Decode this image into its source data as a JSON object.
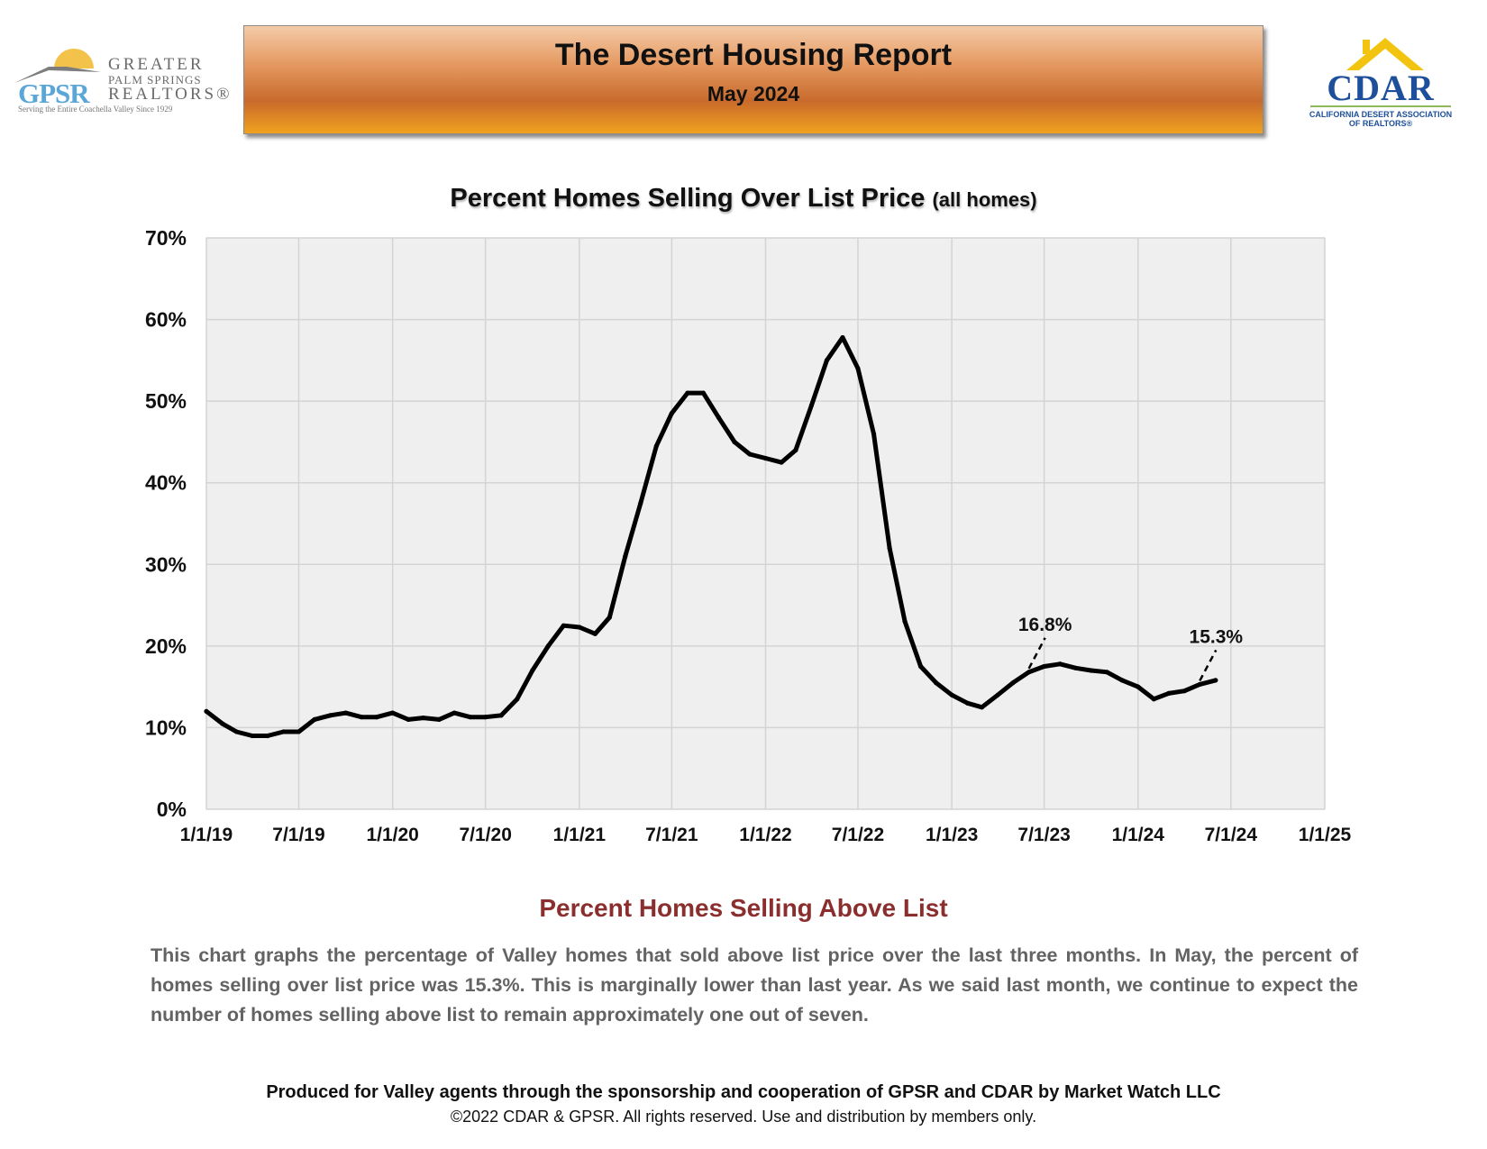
{
  "header": {
    "gpsr": {
      "letters": "GPSR",
      "name_line1": "GREATER",
      "name_line2": "PALM SPRINGS",
      "name_line3": "REALTORS®",
      "tagline": "Serving the Entire Coachella Valley Since 1929"
    },
    "banner_title": "The Desert Housing Report",
    "banner_subtitle": "May 2024",
    "cdar": {
      "word": "CDAR",
      "sub_line1": "CALIFORNIA DESERT ASSOCIATION",
      "sub_line2": "OF REALTORS®"
    }
  },
  "chart_title_main": "Percent Homes Selling Over List Price",
  "chart_title_sub": "(all homes)",
  "chart_data": {
    "type": "line",
    "title": "Percent Homes Selling Over List Price (all homes)",
    "xlabel": "",
    "ylabel": "",
    "x_ticks": [
      "1/1/19",
      "7/1/19",
      "1/1/20",
      "7/1/20",
      "1/1/21",
      "7/1/21",
      "1/1/22",
      "7/1/22",
      "1/1/23",
      "7/1/23",
      "1/1/24",
      "7/1/24",
      "1/1/25"
    ],
    "x_range": [
      "2019-01-01",
      "2025-01-01"
    ],
    "y_ticks": [
      "0%",
      "10%",
      "20%",
      "30%",
      "40%",
      "50%",
      "60%",
      "70%"
    ],
    "ylim": [
      0,
      70
    ],
    "grid": true,
    "series": [
      {
        "color": "#000000",
        "points": [
          {
            "x": "2019-01-01",
            "y": 12.0
          },
          {
            "x": "2019-02-01",
            "y": 10.5
          },
          {
            "x": "2019-03-01",
            "y": 9.5
          },
          {
            "x": "2019-04-01",
            "y": 9.0
          },
          {
            "x": "2019-05-01",
            "y": 9.0
          },
          {
            "x": "2019-06-01",
            "y": 9.5
          },
          {
            "x": "2019-07-01",
            "y": 9.5
          },
          {
            "x": "2019-08-01",
            "y": 11.0
          },
          {
            "x": "2019-09-01",
            "y": 11.5
          },
          {
            "x": "2019-10-01",
            "y": 11.8
          },
          {
            "x": "2019-11-01",
            "y": 11.3
          },
          {
            "x": "2019-12-01",
            "y": 11.3
          },
          {
            "x": "2020-01-01",
            "y": 11.8
          },
          {
            "x": "2020-02-01",
            "y": 11.0
          },
          {
            "x": "2020-03-01",
            "y": 11.2
          },
          {
            "x": "2020-04-01",
            "y": 11.0
          },
          {
            "x": "2020-05-01",
            "y": 11.8
          },
          {
            "x": "2020-06-01",
            "y": 11.3
          },
          {
            "x": "2020-07-01",
            "y": 11.3
          },
          {
            "x": "2020-08-01",
            "y": 11.5
          },
          {
            "x": "2020-09-01",
            "y": 13.5
          },
          {
            "x": "2020-10-01",
            "y": 17.0
          },
          {
            "x": "2020-11-01",
            "y": 20.0
          },
          {
            "x": "2020-12-01",
            "y": 22.5
          },
          {
            "x": "2021-01-01",
            "y": 22.3
          },
          {
            "x": "2021-02-01",
            "y": 21.5
          },
          {
            "x": "2021-03-01",
            "y": 23.5
          },
          {
            "x": "2021-04-01",
            "y": 31.0
          },
          {
            "x": "2021-05-01",
            "y": 37.5
          },
          {
            "x": "2021-06-01",
            "y": 44.5
          },
          {
            "x": "2021-07-01",
            "y": 48.5
          },
          {
            "x": "2021-08-01",
            "y": 51.0
          },
          {
            "x": "2021-09-01",
            "y": 51.0
          },
          {
            "x": "2021-10-01",
            "y": 48.0
          },
          {
            "x": "2021-11-01",
            "y": 45.0
          },
          {
            "x": "2021-12-01",
            "y": 43.5
          },
          {
            "x": "2022-01-01",
            "y": 43.0
          },
          {
            "x": "2022-02-01",
            "y": 42.5
          },
          {
            "x": "2022-03-01",
            "y": 44.0
          },
          {
            "x": "2022-04-01",
            "y": 49.5
          },
          {
            "x": "2022-05-01",
            "y": 55.0
          },
          {
            "x": "2022-06-01",
            "y": 57.8
          },
          {
            "x": "2022-07-01",
            "y": 54.0
          },
          {
            "x": "2022-08-01",
            "y": 46.0
          },
          {
            "x": "2022-09-01",
            "y": 32.0
          },
          {
            "x": "2022-10-01",
            "y": 23.0
          },
          {
            "x": "2022-11-01",
            "y": 17.5
          },
          {
            "x": "2022-12-01",
            "y": 15.5
          },
          {
            "x": "2023-01-01",
            "y": 14.0
          },
          {
            "x": "2023-02-01",
            "y": 13.0
          },
          {
            "x": "2023-03-01",
            "y": 12.5
          },
          {
            "x": "2023-04-01",
            "y": 14.0
          },
          {
            "x": "2023-05-01",
            "y": 15.5
          },
          {
            "x": "2023-06-01",
            "y": 16.8
          },
          {
            "x": "2023-07-01",
            "y": 17.5
          },
          {
            "x": "2023-08-01",
            "y": 17.8
          },
          {
            "x": "2023-09-01",
            "y": 17.3
          },
          {
            "x": "2023-10-01",
            "y": 17.0
          },
          {
            "x": "2023-11-01",
            "y": 16.8
          },
          {
            "x": "2023-12-01",
            "y": 15.8
          },
          {
            "x": "2024-01-01",
            "y": 15.0
          },
          {
            "x": "2024-02-01",
            "y": 13.5
          },
          {
            "x": "2024-03-01",
            "y": 14.2
          },
          {
            "x": "2024-04-01",
            "y": 14.5
          },
          {
            "x": "2024-05-01",
            "y": 15.3
          },
          {
            "x": "2024-06-01",
            "y": 15.8
          }
        ]
      }
    ],
    "annotations": [
      {
        "text": "16.8%",
        "x": "2023-06-01",
        "y": 16.8
      },
      {
        "text": "15.3%",
        "x": "2024-05-01",
        "y": 15.3
      }
    ]
  },
  "section_heading": "Percent Homes Selling Above List",
  "section_body": "This chart graphs the percentage of Valley homes that sold above list price over the last three months. In May, the percent of homes selling over list price was 15.3%. This is marginally lower than last year. As we said last month, we continue to expect the number of homes selling above list to remain approximately one out of seven.",
  "footer_line1": "Produced for Valley agents through the sponsorship and cooperation of GPSR and CDAR by Market Watch LLC",
  "footer_line2": "©2022 CDAR & GPSR.  All rights reserved.  Use and distribution by members only."
}
